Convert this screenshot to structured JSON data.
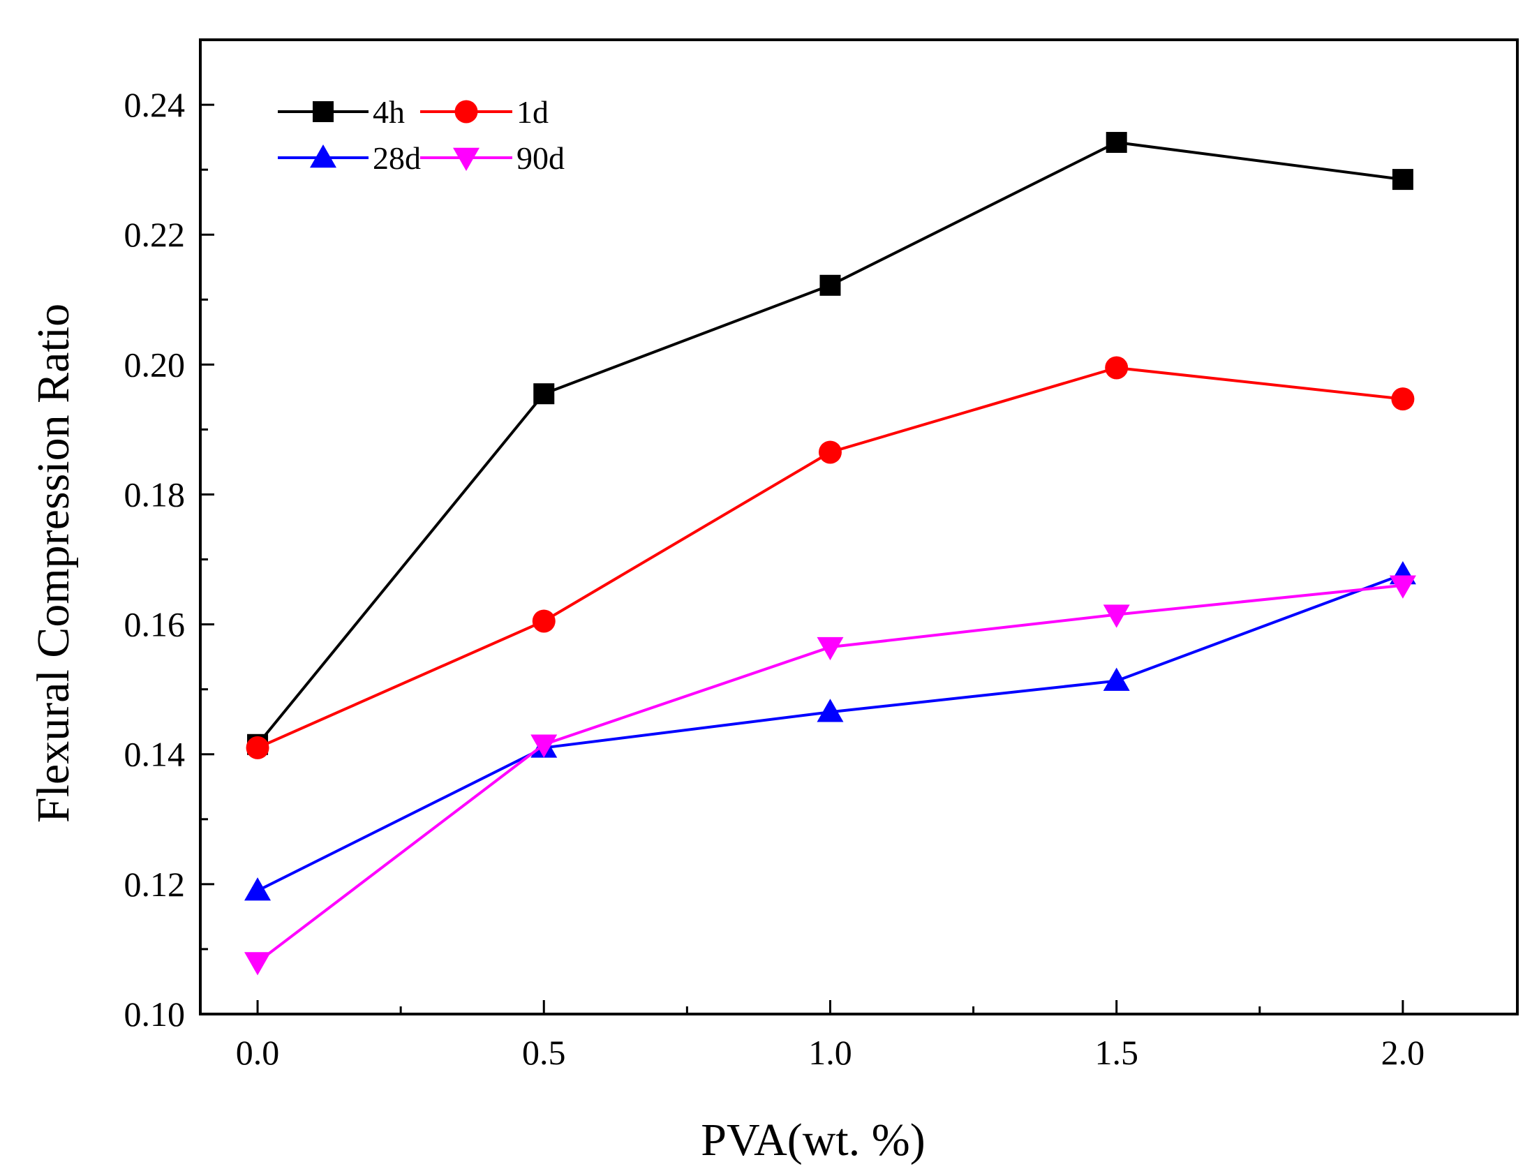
{
  "chart_data": {
    "type": "line",
    "xlabel": "PVA(wt. %)",
    "ylabel": "Flexural Compression Ratio",
    "xlim": [
      -0.1,
      2.2
    ],
    "ylim": [
      0.1,
      0.25
    ],
    "x": [
      0.0,
      0.5,
      1.0,
      1.5,
      2.0
    ],
    "x_ticks": [
      0.0,
      0.5,
      1.0,
      1.5,
      2.0
    ],
    "x_tick_labels": [
      "0.0",
      "0.5",
      "1.0",
      "1.5",
      "2.0"
    ],
    "x_minor_ticks": [
      0.25,
      0.75,
      1.25,
      1.75
    ],
    "y_ticks": [
      0.1,
      0.12,
      0.14,
      0.16,
      0.18,
      0.2,
      0.22,
      0.24
    ],
    "y_tick_labels": [
      "0.10",
      "0.12",
      "0.14",
      "0.16",
      "0.18",
      "0.20",
      "0.22",
      "0.24"
    ],
    "y_minor_ticks": [
      0.11,
      0.13,
      0.15,
      0.17,
      0.19,
      0.21,
      0.23
    ],
    "grid": false,
    "legend_position": "top-left",
    "series": [
      {
        "name": "4h",
        "color": "#000000",
        "marker": "square",
        "values": [
          0.1415,
          0.1955,
          0.2122,
          0.2342,
          0.2285
        ]
      },
      {
        "name": "1d",
        "color": "#ff0000",
        "marker": "circle",
        "values": [
          0.141,
          0.1605,
          0.1865,
          0.1995,
          0.1947
        ]
      },
      {
        "name": "28d",
        "color": "#0000ff",
        "marker": "triangle-up",
        "values": [
          0.119,
          0.141,
          0.1465,
          0.1513,
          0.1677
        ]
      },
      {
        "name": "90d",
        "color": "#ff00ff",
        "marker": "triangle-down",
        "values": [
          0.108,
          0.1415,
          0.1565,
          0.1615,
          0.166
        ]
      }
    ]
  }
}
